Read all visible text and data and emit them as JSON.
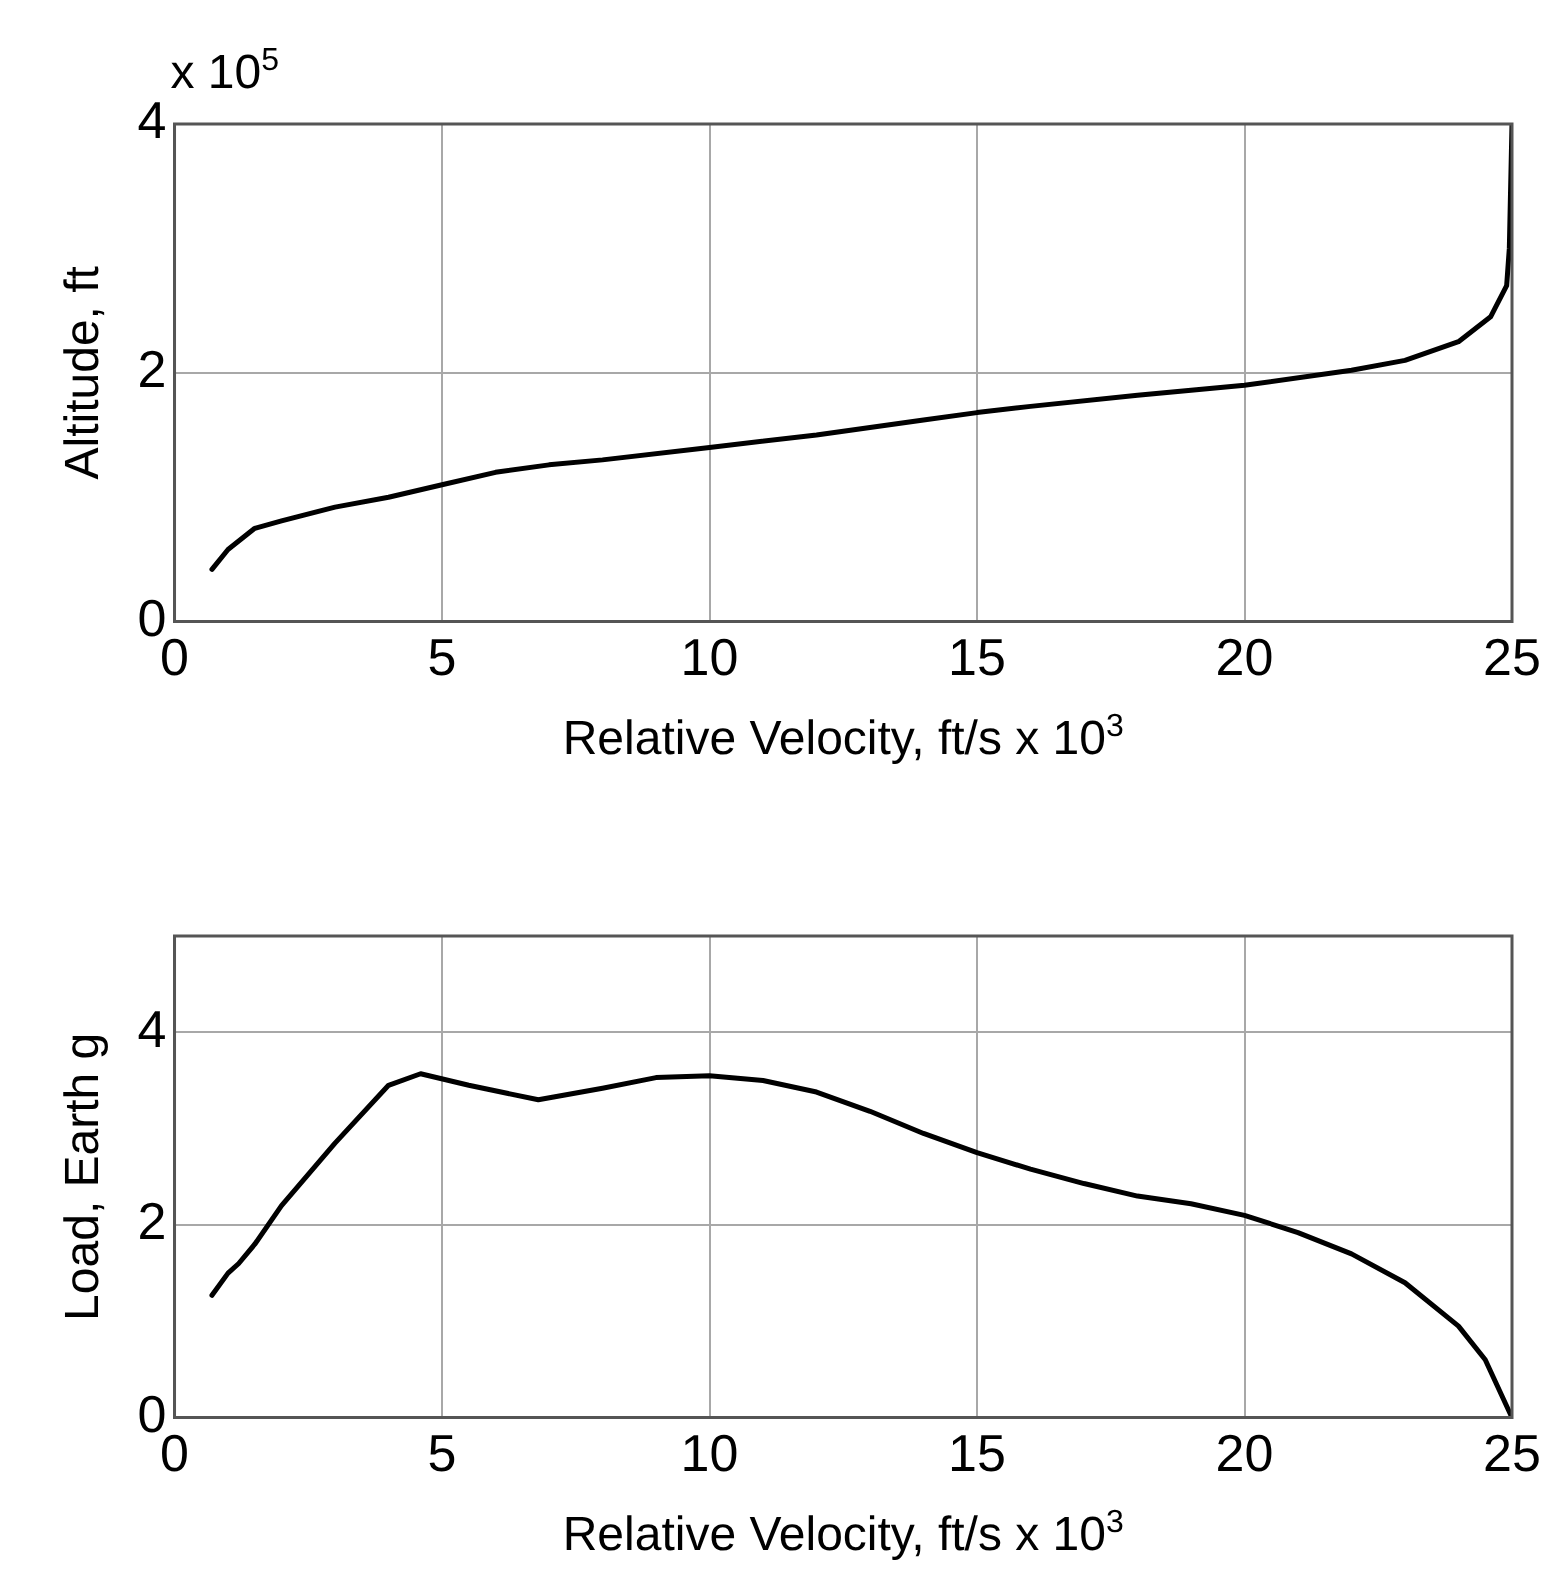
{
  "chart_data": [
    {
      "type": "line",
      "xlabel": "Relative Velocity, ft/s x 10$^{3}$",
      "ylabel": "Altitude, ft",
      "annotations": [
        "x 10$^{5}$"
      ],
      "xlim": [
        0,
        25
      ],
      "xticks": [
        0,
        5,
        10,
        15,
        20,
        25
      ],
      "ylim": [
        0,
        4
      ],
      "yticks": [
        0,
        2,
        4
      ],
      "grid": true,
      "legend": false,
      "marker": "none",
      "line_style": "solid",
      "series": [
        {
          "color": "#000000",
          "x": [
            0.7,
            1.0,
            1.5,
            2,
            3,
            4,
            5,
            6,
            7,
            8,
            10,
            12,
            14,
            15,
            16,
            18,
            20,
            22,
            23,
            24,
            24.6,
            24.9,
            24.95,
            25
          ],
          "values": [
            0.42,
            0.58,
            0.75,
            0.81,
            0.92,
            1.0,
            1.1,
            1.2,
            1.26,
            1.3,
            1.4,
            1.5,
            1.62,
            1.68,
            1.73,
            1.82,
            1.9,
            2.02,
            2.1,
            2.25,
            2.45,
            2.7,
            3.0,
            4.0
          ]
        }
      ]
    },
    {
      "type": "line",
      "xlabel": "Relative Velocity, ft/s x 10$^{3}$",
      "ylabel": "Load, Earth g",
      "xlim": [
        0,
        25
      ],
      "xticks": [
        0,
        5,
        10,
        15,
        20,
        25
      ],
      "ylim": [
        0,
        5
      ],
      "yticks": [
        0,
        2,
        4
      ],
      "grid": true,
      "legend": false,
      "marker": "none",
      "line_style": "solid",
      "series": [
        {
          "color": "#000000",
          "x": [
            0.7,
            1.0,
            1.2,
            1.5,
            2,
            3,
            4,
            4.6,
            5.5,
            6.8,
            8,
            9,
            10,
            11,
            12,
            13,
            14,
            15,
            16,
            17,
            18,
            19,
            20,
            21,
            22,
            23,
            24,
            24.5,
            25
          ],
          "values": [
            1.27,
            1.5,
            1.6,
            1.8,
            2.2,
            2.85,
            3.45,
            3.57,
            3.45,
            3.3,
            3.42,
            3.53,
            3.55,
            3.5,
            3.38,
            3.18,
            2.95,
            2.75,
            2.58,
            2.43,
            2.3,
            2.22,
            2.1,
            1.92,
            1.7,
            1.4,
            0.95,
            0.6,
            0.0
          ]
        }
      ]
    }
  ]
}
